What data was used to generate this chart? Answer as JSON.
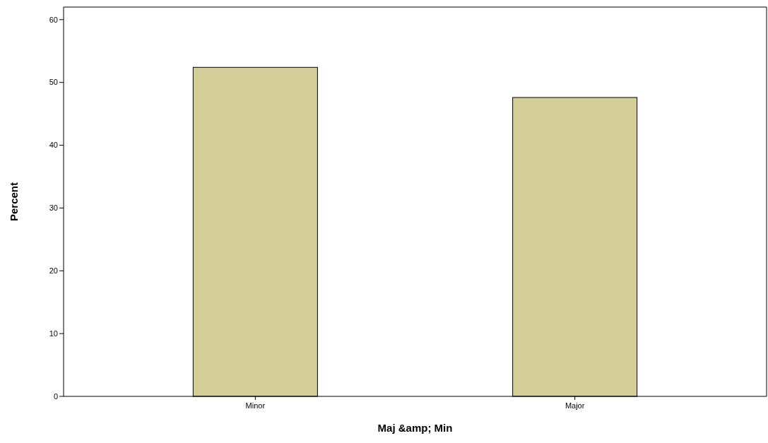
{
  "chart_data": {
    "type": "bar",
    "xlabel": "Maj &amp; Min",
    "ylabel": "Percent",
    "categories": [
      "Minor",
      "Major"
    ],
    "values": [
      52.4,
      47.6
    ],
    "color": "#d3cd98",
    "ylim": [
      0,
      62
    ],
    "yticks": [
      0,
      10,
      20,
      30,
      40,
      50,
      60
    ],
    "grid": false
  }
}
